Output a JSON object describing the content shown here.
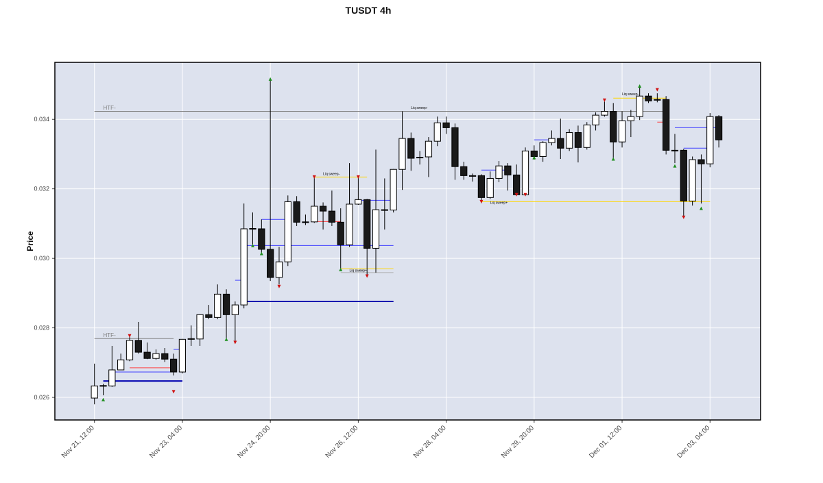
{
  "chart_data": {
    "type": "candlestick",
    "title": "TUSDT 4h",
    "y_label": "Price",
    "x": [
      "Nov 21, 12:00",
      "Nov 21, 16:00",
      "Nov 21, 20:00",
      "Nov 22, 00:00",
      "Nov 22, 04:00",
      "Nov 22, 08:00",
      "Nov 22, 12:00",
      "Nov 22, 16:00",
      "Nov 22, 20:00",
      "Nov 23, 00:00",
      "Nov 23, 04:00",
      "Nov 23, 08:00",
      "Nov 23, 12:00",
      "Nov 23, 16:00",
      "Nov 23, 20:00",
      "Nov 24, 00:00",
      "Nov 24, 04:00",
      "Nov 24, 08:00",
      "Nov 24, 12:00",
      "Nov 24, 16:00",
      "Nov 24, 20:00",
      "Nov 25, 00:00",
      "Nov 25, 04:00",
      "Nov 25, 08:00",
      "Nov 25, 12:00",
      "Nov 25, 16:00",
      "Nov 25, 20:00",
      "Nov 26, 00:00",
      "Nov 26, 04:00",
      "Nov 26, 08:00",
      "Nov 26, 12:00",
      "Nov 26, 16:00",
      "Nov 26, 20:00",
      "Nov 27, 00:00",
      "Nov 27, 04:00",
      "Nov 27, 08:00",
      "Nov 27, 12:00",
      "Nov 27, 16:00",
      "Nov 27, 20:00",
      "Nov 28, 00:00",
      "Nov 28, 04:00",
      "Nov 28, 08:00",
      "Nov 28, 12:00",
      "Nov 28, 16:00",
      "Nov 28, 20:00",
      "Nov 29, 00:00",
      "Nov 29, 04:00",
      "Nov 29, 08:00",
      "Nov 29, 12:00",
      "Nov 29, 16:00",
      "Nov 29, 20:00",
      "Nov 30, 00:00",
      "Nov 30, 04:00",
      "Nov 30, 08:00",
      "Nov 30, 12:00",
      "Nov 30, 16:00",
      "Nov 30, 20:00",
      "Dec 01, 00:00",
      "Dec 01, 04:00",
      "Dec 01, 08:00",
      "Dec 01, 12:00",
      "Dec 01, 16:00",
      "Dec 01, 20:00",
      "Dec 02, 00:00",
      "Dec 02, 04:00",
      "Dec 02, 08:00",
      "Dec 02, 12:00",
      "Dec 02, 16:00",
      "Dec 02, 20:00",
      "Dec 03, 00:00",
      "Dec 03, 04:00",
      "Dec 03, 08:00"
    ],
    "open": [
      0.02598,
      0.02633,
      0.02633,
      0.02679,
      0.02708,
      0.02764,
      0.0273,
      0.02712,
      0.02726,
      0.0271,
      0.02673,
      0.02767,
      0.02768,
      0.02838,
      0.0283,
      0.02897,
      0.02838,
      0.02866,
      0.03085,
      0.03085,
      0.03026,
      0.02945,
      0.0299,
      0.03163,
      0.03104,
      0.03105,
      0.0315,
      0.03136,
      0.03104,
      0.03039,
      0.03156,
      0.03169,
      0.03029,
      0.0314,
      0.03139,
      0.03256,
      0.03345,
      0.0329,
      0.03292,
      0.03337,
      0.0339,
      0.03376,
      0.03264,
      0.03238,
      0.03238,
      0.03175,
      0.0323,
      0.03266,
      0.0324,
      0.03183,
      0.03309,
      0.03293,
      0.03333,
      0.03345,
      0.03317,
      0.03362,
      0.03319,
      0.03384,
      0.03412,
      0.03423,
      0.03335,
      0.03396,
      0.03408,
      0.03467,
      0.03457,
      0.03457,
      0.03311,
      0.03311,
      0.03165,
      0.03284,
      0.03272,
      0.03408
    ],
    "high": [
      0.02697,
      0.02639,
      0.02748,
      0.02726,
      0.02777,
      0.02817,
      0.02758,
      0.02738,
      0.02742,
      0.02726,
      0.02768,
      0.02807,
      0.02839,
      0.02866,
      0.02925,
      0.02911,
      0.02876,
      0.03158,
      0.03132,
      0.03112,
      0.03516,
      0.03033,
      0.03181,
      0.03179,
      0.03126,
      0.03234,
      0.03161,
      0.03195,
      0.03144,
      0.03274,
      0.03234,
      0.03171,
      0.03313,
      0.0323,
      0.03257,
      0.03423,
      0.03362,
      0.03309,
      0.03349,
      0.03408,
      0.03408,
      0.03388,
      0.03278,
      0.03244,
      0.03242,
      0.0325,
      0.0328,
      0.03274,
      0.0327,
      0.03319,
      0.03325,
      0.03337,
      0.03368,
      0.03402,
      0.03372,
      0.03382,
      0.03392,
      0.0342,
      0.03451,
      0.03447,
      0.03423,
      0.03427,
      0.03496,
      0.03475,
      0.03475,
      0.03467,
      0.03358,
      0.03315,
      0.03293,
      0.03299,
      0.03418,
      0.03412
    ],
    "low": [
      0.0258,
      0.02606,
      0.0263,
      0.02679,
      0.02704,
      0.02726,
      0.0271,
      0.02708,
      0.02702,
      0.02663,
      0.02669,
      0.02748,
      0.02748,
      0.02825,
      0.02825,
      0.02767,
      0.02758,
      0.02856,
      0.03033,
      0.0301,
      0.02935,
      0.02925,
      0.02978,
      0.03093,
      0.03096,
      0.03102,
      0.03083,
      0.03093,
      0.02968,
      0.03033,
      0.03154,
      0.02949,
      0.02959,
      0.03083,
      0.03132,
      0.03197,
      0.03252,
      0.0327,
      0.03234,
      0.03323,
      0.03358,
      0.03226,
      0.03226,
      0.03221,
      0.03159,
      0.03171,
      0.03219,
      0.03195,
      0.03181,
      0.03181,
      0.03284,
      0.03278,
      0.03325,
      0.03286,
      0.03309,
      0.03276,
      0.03313,
      0.03368,
      0.03408,
      0.03286,
      0.03319,
      0.03349,
      0.03398,
      0.03447,
      0.03449,
      0.03299,
      0.03274,
      0.03118,
      0.03152,
      0.03158,
      0.03262,
      0.03319
    ],
    "close": [
      0.02633,
      0.02634,
      0.02679,
      0.02708,
      0.02764,
      0.0273,
      0.02712,
      0.02726,
      0.0271,
      0.02673,
      0.02767,
      0.02769,
      0.02838,
      0.0283,
      0.02897,
      0.02838,
      0.02866,
      0.03085,
      0.03086,
      0.03026,
      0.02945,
      0.0299,
      0.03163,
      0.03104,
      0.03105,
      0.0315,
      0.03136,
      0.03104,
      0.03039,
      0.03156,
      0.03169,
      0.03029,
      0.0314,
      0.03139,
      0.03256,
      0.03345,
      0.03288,
      0.03291,
      0.03337,
      0.0339,
      0.03376,
      0.03264,
      0.03238,
      0.03237,
      0.03175,
      0.0323,
      0.03266,
      0.0324,
      0.03183,
      0.03309,
      0.03293,
      0.03333,
      0.03345,
      0.03317,
      0.03362,
      0.03319,
      0.03384,
      0.03412,
      0.03423,
      0.03335,
      0.03396,
      0.03408,
      0.03467,
      0.03453,
      0.03456,
      0.03311,
      0.0331,
      0.03165,
      0.03284,
      0.03272,
      0.03408,
      0.03341
    ],
    "up_color": "#ffffff",
    "down_color": "#1a1a1a",
    "edge_color": "#000000",
    "background": "#dde2ee",
    "grid": true,
    "xlim": [
      "Nov 20, 18:00",
      "Dec 04, 03:00"
    ],
    "xticks": [
      "Nov 21, 12:00",
      "Nov 23, 04:00",
      "Nov 24, 20:00",
      "Nov 26, 12:00",
      "Nov 28, 04:00",
      "Nov 29, 20:00",
      "Dec 01, 12:00",
      "Dec 03, 04:00"
    ],
    "ylim": [
      0.02535,
      0.03564
    ],
    "yticks": [
      0.026,
      0.028,
      {
        "value": 0.03,
        "label": "0.030"
      },
      0.032,
      0.034
    ],
    "levels": [
      {
        "price": 0.03423,
        "start": "Nov 21, 12:00",
        "end": "Dec 02, 08:00",
        "color": "#808080",
        "width": 1
      },
      {
        "price": 0.02769,
        "start": "Nov 21, 12:00",
        "end": "Nov 23, 00:00",
        "color": "#808080",
        "width": 1
      },
      {
        "price": 0.02647,
        "start": "Nov 21, 16:00",
        "end": "Nov 23, 04:00",
        "color": "#0000b0",
        "width": 2
      },
      {
        "price": 0.02876,
        "start": "Nov 24, 08:00",
        "end": "Nov 27, 04:00",
        "color": "#0000b0",
        "width": 2
      },
      {
        "price": 0.03234,
        "start": "Nov 25, 16:00",
        "end": "Nov 26, 16:00",
        "color": "#ffd700",
        "width": 1
      },
      {
        "price": 0.0297,
        "start": "Nov 26, 04:00",
        "end": "Nov 27, 04:00",
        "color": "#ffd700",
        "width": 1
      },
      {
        "price": 0.02959,
        "start": "Nov 26, 04:00",
        "end": "Nov 27, 04:00",
        "color": "#b0b0b0",
        "width": 1
      },
      {
        "price": 0.03163,
        "start": "Nov 28, 20:00",
        "end": "Dec 03, 04:00",
        "color": "#ffd700",
        "width": 1
      },
      {
        "price": 0.03461,
        "start": "Dec 01, 08:00",
        "end": "Dec 02, 08:00",
        "color": "#ffd700",
        "width": 1
      },
      {
        "price": 0.03037,
        "start": "Nov 24, 08:00",
        "end": "Nov 27, 04:00",
        "color": "#4040ff",
        "width": 1
      },
      {
        "price": 0.03112,
        "start": "Nov 24, 16:00",
        "end": "Nov 25, 04:00",
        "color": "#4040ff",
        "width": 1
      },
      {
        "price": 0.02937,
        "start": "Nov 24, 04:00",
        "end": "Nov 24, 08:00",
        "color": "#4040ff",
        "width": 1
      },
      {
        "price": 0.03106,
        "start": "Nov 25, 16:00",
        "end": "Nov 26, 04:00",
        "color": "#ff4040",
        "width": 1
      },
      {
        "price": 0.03167,
        "start": "Nov 26, 12:00",
        "end": "Nov 27, 04:00",
        "color": "#4040ff",
        "width": 1
      },
      {
        "price": 0.03254,
        "start": "Nov 28, 20:00",
        "end": "Nov 29, 08:00",
        "color": "#4040ff",
        "width": 1
      },
      {
        "price": 0.03341,
        "start": "Nov 29, 20:00",
        "end": "Nov 30, 04:00",
        "color": "#4040ff",
        "width": 1
      },
      {
        "price": 0.03376,
        "start": "Dec 02, 12:00",
        "end": "Dec 03, 08:00",
        "color": "#4040ff",
        "width": 1
      },
      {
        "price": 0.03317,
        "start": "Dec 02, 16:00",
        "end": "Dec 03, 04:00",
        "color": "#4040ff",
        "width": 1
      },
      {
        "price": 0.03392,
        "start": "Dec 02, 04:00",
        "end": "Dec 02, 08:00",
        "color": "#ff4040",
        "width": 1
      },
      {
        "price": 0.02738,
        "start": "Nov 23, 00:00",
        "end": "Nov 23, 04:00",
        "color": "#4040ff",
        "width": 1
      },
      {
        "price": 0.02685,
        "start": "Nov 22, 04:00",
        "end": "Nov 23, 00:00",
        "color": "#ff4040",
        "width": 1
      },
      {
        "price": 0.02673,
        "start": "Nov 21, 20:00",
        "end": "Nov 23, 00:00",
        "color": "#4040ff",
        "width": 1
      }
    ],
    "signals_up": {
      "color": "#1f8f1f",
      "x": [
        "Nov 21, 16:00",
        "Nov 24, 00:00",
        "Nov 24, 12:00",
        "Nov 24, 16:00",
        "Nov 24, 20:00",
        "Nov 26, 04:00",
        "Nov 29, 20:00",
        "Dec 01, 08:00",
        "Dec 01, 20:00",
        "Dec 02, 12:00",
        "Dec 03, 00:00"
      ],
      "price": [
        0.02594,
        0.02767,
        0.03037,
        0.03014,
        0.03516,
        0.02968,
        0.0329,
        0.03286,
        0.03496,
        0.03266,
        0.03144
      ]
    },
    "signals_down": {
      "color": "#d01010",
      "x": [
        "Nov 22, 04:00",
        "Nov 23, 00:00",
        "Nov 24, 04:00",
        "Nov 25, 00:00",
        "Nov 25, 16:00",
        "Nov 26, 12:00",
        "Nov 26, 16:00",
        "Nov 28, 20:00",
        "Nov 29, 12:00",
        "Nov 29, 16:00",
        "Dec 01, 04:00",
        "Dec 02, 04:00",
        "Dec 02, 16:00"
      ],
      "price": [
        0.02777,
        0.02616,
        0.02758,
        0.02919,
        0.03234,
        0.03234,
        0.02949,
        0.03163,
        0.03183,
        0.03183,
        0.03455,
        0.03485,
        0.03118
      ]
    },
    "annotations": [
      {
        "text": "HTF-",
        "x": "Nov 21, 16:00",
        "price": 0.03428,
        "color": "#808080"
      },
      {
        "text": "HTF-",
        "x": "Nov 21, 16:00",
        "price": 0.02774,
        "color": "#808080"
      },
      {
        "text": "Liq sweep-",
        "x": "Nov 27, 12:00",
        "price": 0.0343,
        "color": "#000000"
      },
      {
        "text": "Liq sweep-",
        "x": "Nov 25, 20:00",
        "price": 0.0324,
        "color": "#000000"
      },
      {
        "text": "Liq sweep+",
        "x": "Nov 26, 08:00",
        "price": 0.02962,
        "color": "#000000"
      },
      {
        "text": "Liq sweep+",
        "x": "Nov 29, 00:00",
        "price": 0.03157,
        "color": "#000000"
      },
      {
        "text": "Liq sweep-",
        "x": "Dec 01, 12:00",
        "price": 0.03469,
        "color": "#000000"
      }
    ]
  }
}
